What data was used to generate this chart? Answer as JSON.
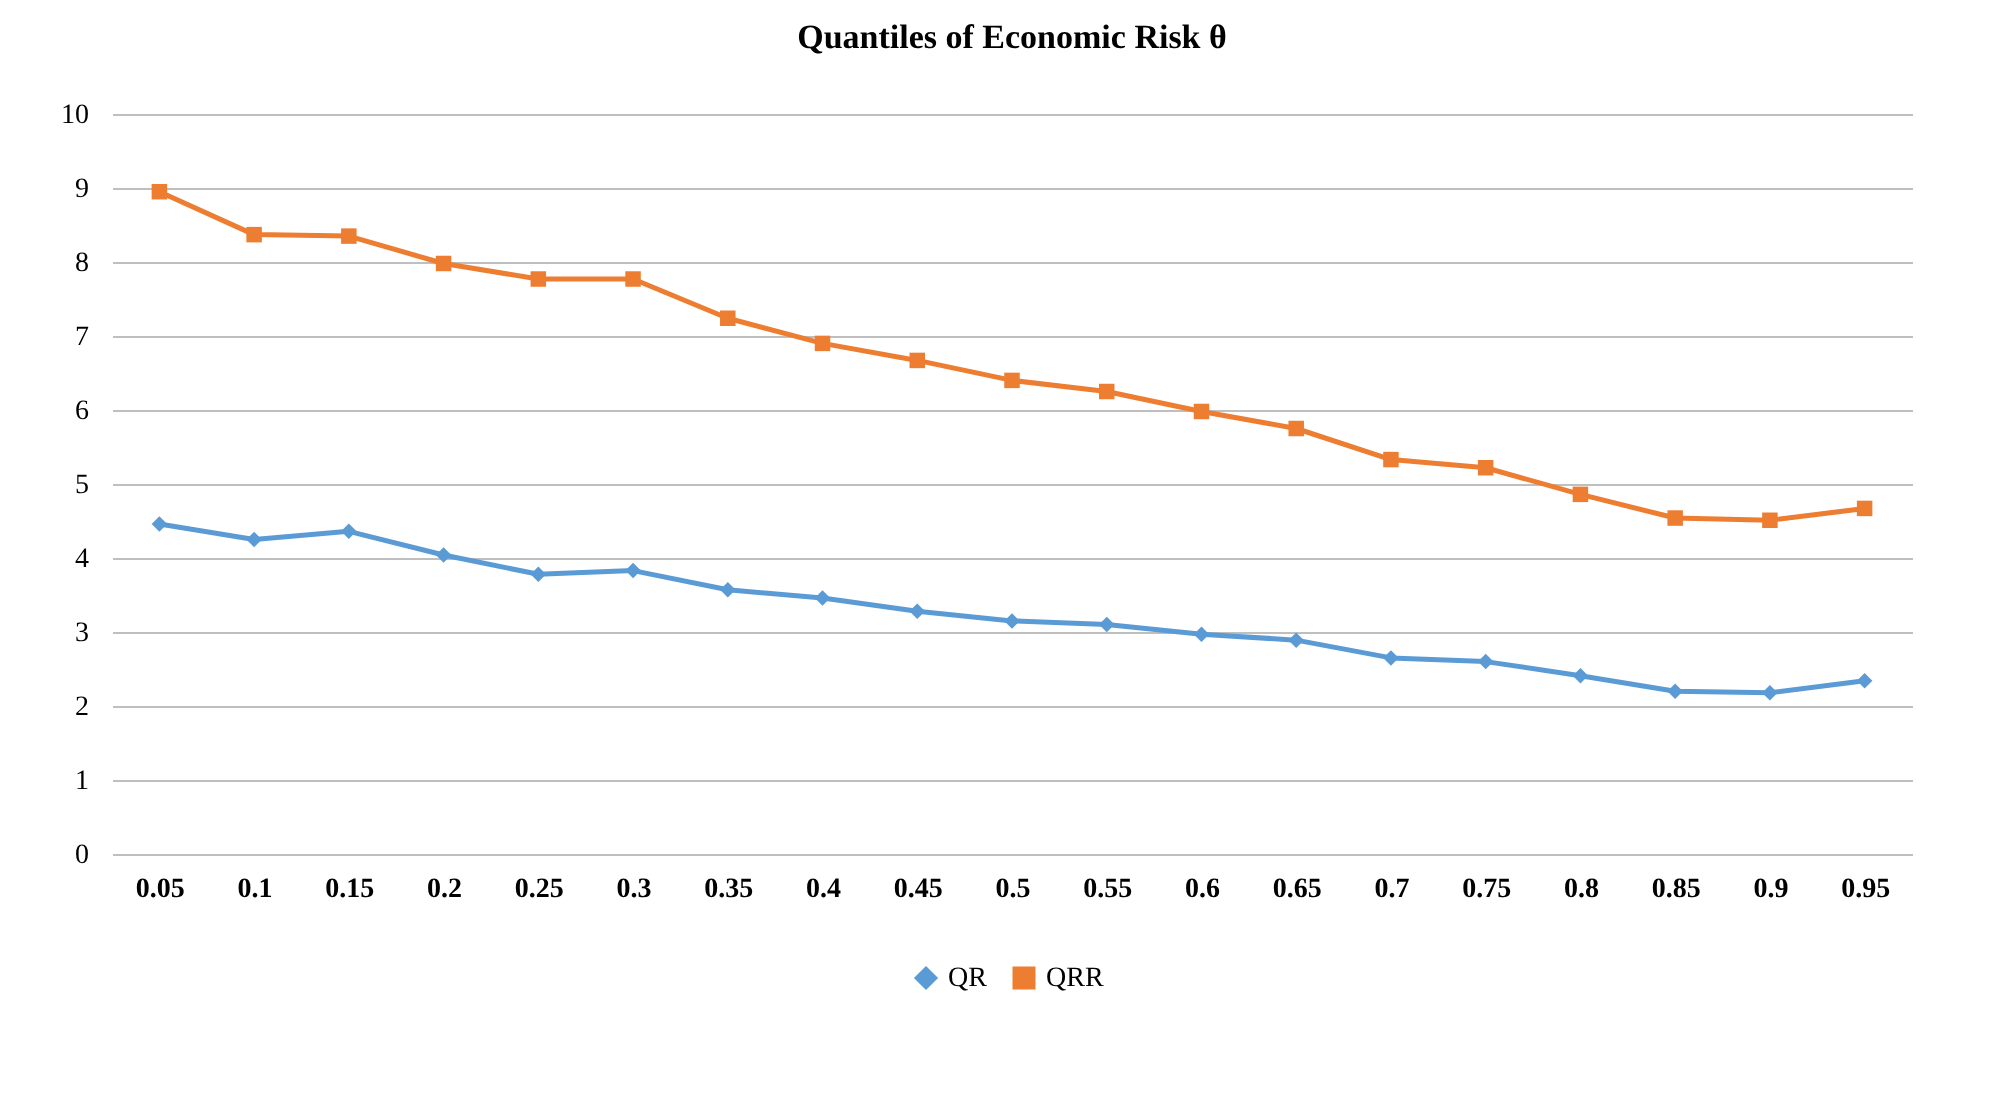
{
  "chart_data": {
    "type": "line",
    "title": "Quantiles of Economic  Risk θ",
    "categories": [
      "0.05",
      "0.1",
      "0.15",
      "0.2",
      "0.25",
      "0.3",
      "0.35",
      "0.4",
      "0.45",
      "0.5",
      "0.55",
      "0.6",
      "0.65",
      "0.7",
      "0.75",
      "0.8",
      "0.85",
      "0.9",
      "0.95"
    ],
    "series": [
      {
        "name": "QR",
        "color": "#5b9bd5",
        "marker": "diamond",
        "values": [
          4.46,
          4.25,
          4.36,
          4.04,
          3.78,
          3.83,
          3.57,
          3.46,
          3.28,
          3.15,
          3.1,
          2.97,
          2.89,
          2.65,
          2.6,
          2.41,
          2.2,
          2.18,
          2.34
        ]
      },
      {
        "name": "QRR",
        "color": "#ed7d31",
        "marker": "square",
        "values": [
          8.95,
          8.37,
          8.35,
          7.98,
          7.77,
          7.77,
          7.24,
          6.9,
          6.67,
          6.4,
          6.25,
          5.98,
          5.75,
          5.33,
          5.22,
          4.86,
          4.54,
          4.51,
          4.67
        ]
      }
    ],
    "ylim": [
      0,
      10
    ],
    "yticks": [
      0,
      1,
      2,
      3,
      4,
      5,
      6,
      7,
      8,
      9,
      10
    ],
    "grid": "y",
    "legend": "bottom",
    "line_style": "solid"
  }
}
